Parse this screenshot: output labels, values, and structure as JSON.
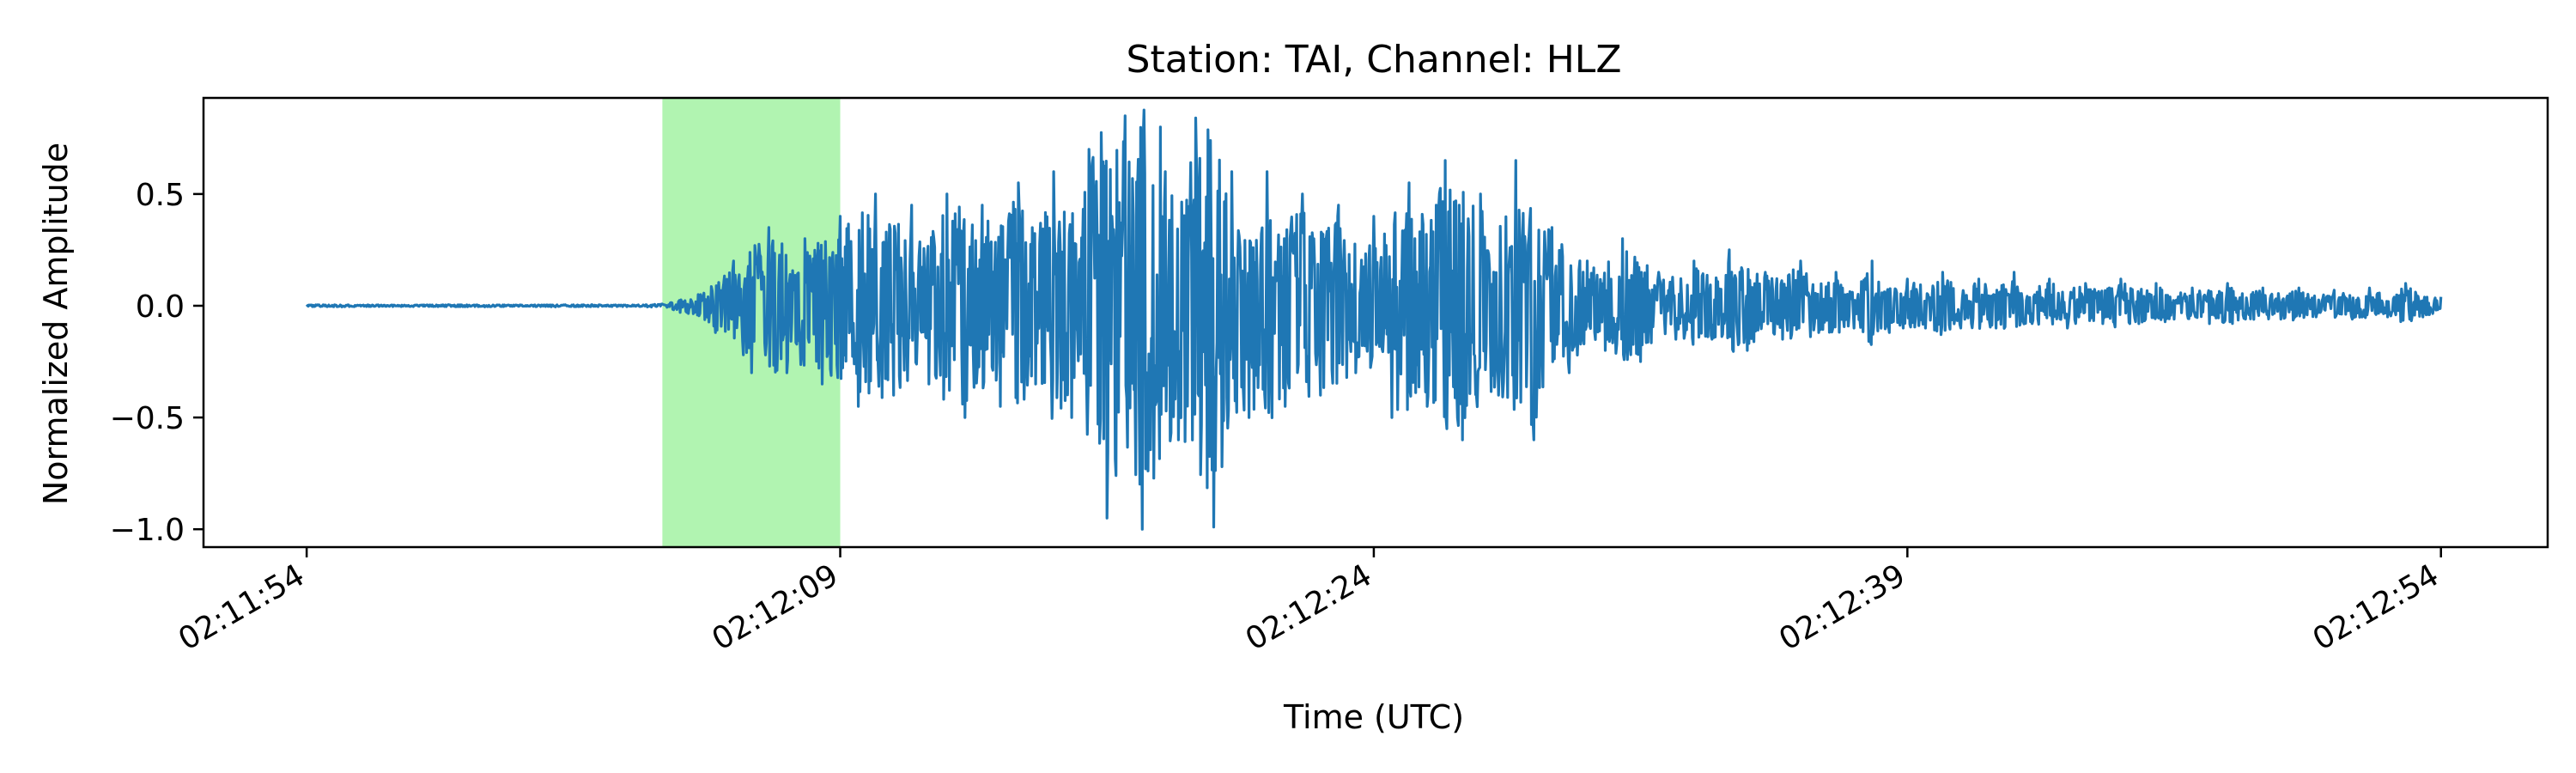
{
  "chart_data": {
    "type": "line",
    "title": "Station: TAI, Channel: HLZ",
    "xlabel": "Time (UTC)",
    "ylabel": "Normalized Amplitude",
    "x_ticks": [
      "02:11:54",
      "02:12:09",
      "02:12:24",
      "02:12:39",
      "02:12:54"
    ],
    "y_ticks": [
      "0.5",
      "0.0",
      "−0.5",
      "−1.0"
    ],
    "y_tick_values": [
      0.5,
      0.0,
      -0.5,
      -1.0
    ],
    "xlim": [
      "02:11:51.1",
      "02:12:57"
    ],
    "ylim": [
      -1.08,
      0.93
    ],
    "x_start": "02:11:54",
    "x_end": "02:12:54",
    "highlight": {
      "start": "02:12:04",
      "end": "02:12:09",
      "color": "#b1f4b1"
    },
    "series": [
      {
        "color": "#1f77b4",
        "x": [
          "02:11:54",
          "02:11:55",
          "02:11:56",
          "02:11:57",
          "02:11:58",
          "02:11:59",
          "02:12:00",
          "02:12:01",
          "02:12:02",
          "02:12:03",
          "02:12:04",
          "02:12:04.5",
          "02:12:05",
          "02:12:05.5",
          "02:12:06",
          "02:12:06.5",
          "02:12:07",
          "02:12:07.5",
          "02:12:08",
          "02:12:08.5",
          "02:12:09",
          "02:12:09.5",
          "02:12:10",
          "02:12:10.5",
          "02:12:11",
          "02:12:11.5",
          "02:12:12",
          "02:12:12.5",
          "02:12:13",
          "02:12:13.5",
          "02:12:14",
          "02:12:14.5",
          "02:12:15",
          "02:12:15.5",
          "02:12:16",
          "02:12:16.5",
          "02:12:17",
          "02:12:17.5",
          "02:12:18",
          "02:12:18.5",
          "02:12:19",
          "02:12:19.5",
          "02:12:20",
          "02:12:20.5",
          "02:12:21",
          "02:12:21.5",
          "02:12:22",
          "02:12:22.5",
          "02:12:23",
          "02:12:23.5",
          "02:12:24",
          "02:12:24.5",
          "02:12:25",
          "02:12:25.5",
          "02:12:26",
          "02:12:26.5",
          "02:12:27",
          "02:12:27.5",
          "02:12:28",
          "02:12:28.5",
          "02:12:29",
          "02:12:29.5",
          "02:12:30",
          "02:12:30.5",
          "02:12:31",
          "02:12:31.5",
          "02:12:32",
          "02:12:32.5",
          "02:12:33",
          "02:12:33.5",
          "02:12:34",
          "02:12:34.5",
          "02:12:35",
          "02:12:35.5",
          "02:12:36",
          "02:12:36.5",
          "02:12:37",
          "02:12:37.5",
          "02:12:38",
          "02:12:38.5",
          "02:12:39",
          "02:12:39.5",
          "02:12:40",
          "02:12:40.5",
          "02:12:41",
          "02:12:41.5",
          "02:12:42",
          "02:12:42.5",
          "02:12:43",
          "02:12:43.5",
          "02:12:44",
          "02:12:44.5",
          "02:12:45",
          "02:12:45.5",
          "02:12:46",
          "02:12:46.5",
          "02:12:47",
          "02:12:47.5",
          "02:12:48",
          "02:12:48.5",
          "02:12:49",
          "02:12:49.5",
          "02:12:50",
          "02:12:50.5",
          "02:12:51",
          "02:12:51.5",
          "02:12:52",
          "02:12:52.5",
          "02:12:53",
          "02:12:53.5",
          "02:12:54"
        ],
        "values": [
          0.005,
          -0.005,
          0.004,
          -0.004,
          0.005,
          -0.005,
          0.004,
          -0.005,
          0.005,
          -0.004,
          0.008,
          -0.03,
          0.05,
          -0.12,
          0.2,
          -0.3,
          0.35,
          -0.3,
          0.3,
          -0.35,
          0.4,
          -0.45,
          0.5,
          -0.4,
          0.45,
          -0.35,
          0.5,
          -0.5,
          0.45,
          -0.45,
          0.55,
          -0.35,
          0.6,
          -0.5,
          0.7,
          -0.95,
          0.85,
          -1.0,
          0.8,
          -0.6,
          0.84,
          -0.99,
          0.6,
          -0.5,
          0.6,
          -0.45,
          0.5,
          -0.4,
          0.45,
          -0.3,
          0.4,
          -0.5,
          0.55,
          -0.45,
          0.65,
          -0.6,
          0.5,
          -0.4,
          0.65,
          -0.6,
          0.35,
          -0.3,
          0.2,
          -0.2,
          0.3,
          -0.25,
          0.15,
          -0.15,
          0.2,
          -0.15,
          0.25,
          -0.2,
          0.15,
          -0.15,
          0.2,
          -0.12,
          0.15,
          -0.1,
          0.2,
          -0.12,
          0.12,
          -0.1,
          0.15,
          -0.1,
          0.12,
          -0.1,
          0.15,
          -0.08,
          0.12,
          -0.1,
          0.1,
          -0.08,
          0.12,
          -0.08,
          0.1,
          -0.06,
          0.08,
          -0.08,
          0.1,
          -0.06,
          0.08,
          -0.06,
          0.08,
          -0.05,
          0.07,
          -0.06,
          0.08,
          -0.05,
          0.1,
          -0.05,
          0.04
        ]
      }
    ]
  }
}
